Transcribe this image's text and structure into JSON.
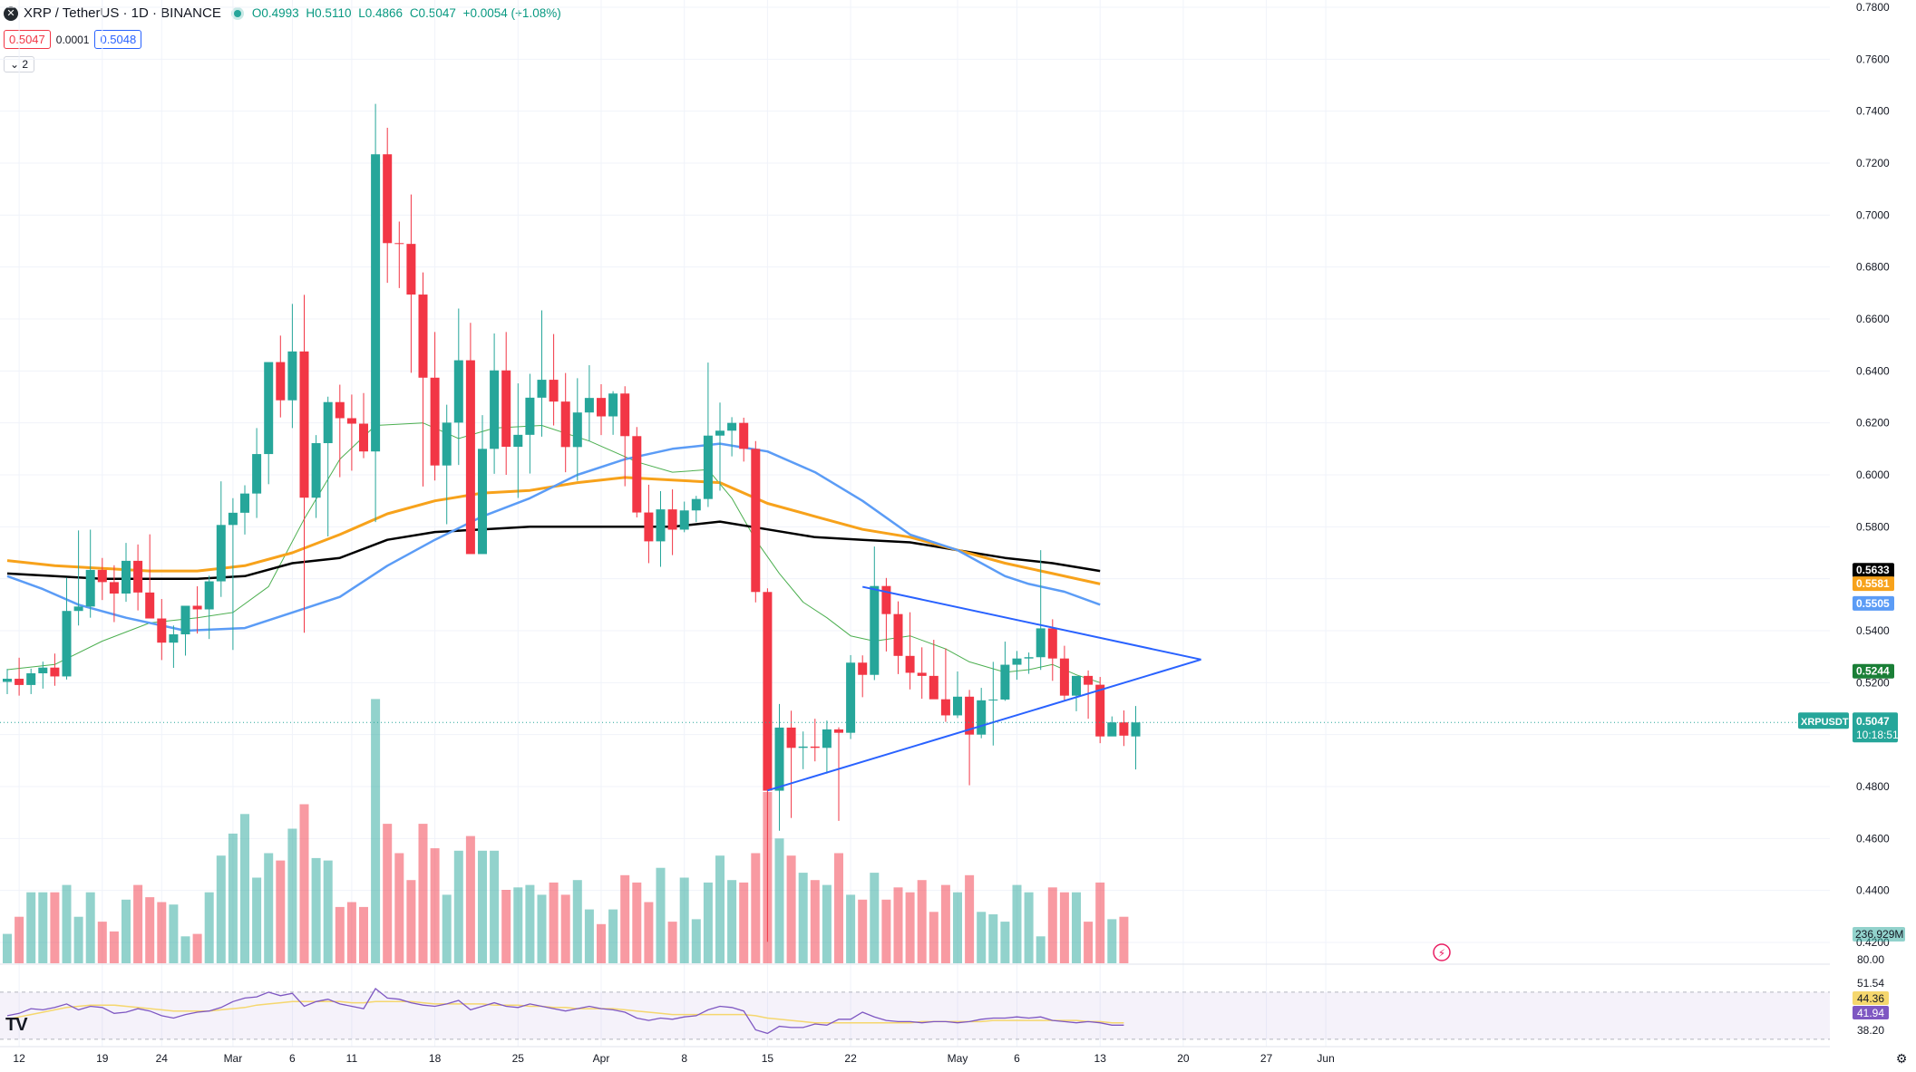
{
  "legend": {
    "logo": "✕",
    "symbol": "XRP / TetherUS · 1D · BINANCE",
    "open": "O0.4993",
    "high": "H0.5110",
    "low": "L0.4866",
    "close": "C0.5047",
    "change": "+0.0054 (+1.08%)",
    "sell_price": "0.5047",
    "spread": "0.0001",
    "buy_price": "0.5048",
    "collapse_label": "⌄ 2"
  },
  "colors": {
    "up": "#26a69a",
    "down": "#f23645",
    "ma_fast": "#4caf50",
    "ma_50": "#5b9cf6",
    "ma_100": "#f7a21b",
    "ma_200": "#000000",
    "trendline": "#2962ff",
    "rsi": "#7e57c2",
    "rsi_ma": "#f5d76e"
  },
  "chart_data": {
    "type": "candlestick",
    "symbol": "XRPUSDT",
    "y_axis_ticks": [
      "0.7800",
      "0.7600",
      "0.7400",
      "0.7200",
      "0.7000",
      "0.6800",
      "0.6600",
      "0.6400",
      "0.6200",
      "0.6000",
      "0.5800",
      "0.5600",
      "0.5400",
      "0.5200",
      "0.5000",
      "0.4800",
      "0.4600",
      "0.4400",
      "0.4200"
    ],
    "ylim": [
      0.409,
      0.781
    ],
    "x_axis_labels": [
      {
        "i": 1,
        "label": "12"
      },
      {
        "i": 8,
        "label": "19"
      },
      {
        "i": 13,
        "label": "24"
      },
      {
        "i": 19,
        "label": "Mar"
      },
      {
        "i": 24,
        "label": "6"
      },
      {
        "i": 29,
        "label": "11"
      },
      {
        "i": 36,
        "label": "18"
      },
      {
        "i": 43,
        "label": "25"
      },
      {
        "i": 50,
        "label": "Apr"
      },
      {
        "i": 57,
        "label": "8"
      },
      {
        "i": 64,
        "label": "15"
      },
      {
        "i": 71,
        "label": "22"
      },
      {
        "i": 80,
        "label": "May"
      },
      {
        "i": 85,
        "label": "6"
      },
      {
        "i": 92,
        "label": "13"
      },
      {
        "i": 99,
        "label": "20"
      },
      {
        "i": 106,
        "label": "27"
      },
      {
        "i": 111,
        "label": "Jun"
      }
    ],
    "candles": [
      [
        0.5203,
        0.5253,
        0.5156,
        0.5215
      ],
      [
        0.5215,
        0.5296,
        0.515,
        0.5191
      ],
      [
        0.5191,
        0.5254,
        0.5156,
        0.5236
      ],
      [
        0.5236,
        0.5281,
        0.5177,
        0.5258
      ],
      [
        0.5258,
        0.5312,
        0.5188,
        0.5224
      ],
      [
        0.5224,
        0.5604,
        0.5212,
        0.5476
      ],
      [
        0.5476,
        0.5786,
        0.542,
        0.5493
      ],
      [
        0.5493,
        0.5789,
        0.545,
        0.5634
      ],
      [
        0.5634,
        0.568,
        0.5518,
        0.5587
      ],
      [
        0.5587,
        0.5652,
        0.5433,
        0.5543
      ],
      [
        0.5543,
        0.5738,
        0.5511,
        0.5669
      ],
      [
        0.5669,
        0.5732,
        0.5478,
        0.5547
      ],
      [
        0.5547,
        0.5771,
        0.5462,
        0.5447
      ],
      [
        0.5447,
        0.5522,
        0.5287,
        0.5354
      ],
      [
        0.5354,
        0.542,
        0.5257,
        0.5386
      ],
      [
        0.5386,
        0.5476,
        0.5304,
        0.5496
      ],
      [
        0.5496,
        0.5571,
        0.5389,
        0.5482
      ],
      [
        0.5482,
        0.5612,
        0.5368,
        0.559
      ],
      [
        0.559,
        0.5975,
        0.553,
        0.5807
      ],
      [
        0.5807,
        0.591,
        0.5326,
        0.5854
      ],
      [
        0.5854,
        0.596,
        0.577,
        0.5928
      ],
      [
        0.5928,
        0.618,
        0.5834,
        0.608
      ],
      [
        0.608,
        0.6406,
        0.5964,
        0.6434
      ],
      [
        0.6434,
        0.6536,
        0.6221,
        0.6287
      ],
      [
        0.6287,
        0.6658,
        0.618,
        0.6475
      ],
      [
        0.6475,
        0.6693,
        0.5392,
        0.5912
      ],
      [
        0.5912,
        0.6153,
        0.5834,
        0.6122
      ],
      [
        0.6122,
        0.6301,
        0.5763,
        0.628
      ],
      [
        0.628,
        0.6347,
        0.5991,
        0.6218
      ],
      [
        0.6218,
        0.6309,
        0.6016,
        0.6197
      ],
      [
        0.6197,
        0.6315,
        0.6064,
        0.609
      ],
      [
        0.609,
        0.7428,
        0.5818,
        0.7234
      ],
      [
        0.7234,
        0.7336,
        0.6739,
        0.6892
      ],
      [
        0.6892,
        0.6975,
        0.6719,
        0.6889
      ],
      [
        0.6889,
        0.7079,
        0.6393,
        0.6694
      ],
      [
        0.6694,
        0.6779,
        0.5955,
        0.6374
      ],
      [
        0.6374,
        0.655,
        0.5978,
        0.6036
      ],
      [
        0.6036,
        0.627,
        0.581,
        0.6201
      ],
      [
        0.6201,
        0.664,
        0.6038,
        0.6441
      ],
      [
        0.6441,
        0.6585,
        0.5697,
        0.5695
      ],
      [
        0.5695,
        0.623,
        0.5697,
        0.61
      ],
      [
        0.61,
        0.6544,
        0.6004,
        0.6402
      ],
      [
        0.6402,
        0.655,
        0.6,
        0.6108
      ],
      [
        0.6108,
        0.6352,
        0.5911,
        0.6154
      ],
      [
        0.6154,
        0.6389,
        0.6005,
        0.6297
      ],
      [
        0.6297,
        0.6633,
        0.6147,
        0.6366
      ],
      [
        0.6366,
        0.6542,
        0.619,
        0.6282
      ],
      [
        0.6282,
        0.6392,
        0.601,
        0.6107
      ],
      [
        0.6107,
        0.6372,
        0.5977,
        0.624
      ],
      [
        0.624,
        0.6422,
        0.6129,
        0.6296
      ],
      [
        0.6296,
        0.6349,
        0.6153,
        0.6225
      ],
      [
        0.6225,
        0.6322,
        0.6154,
        0.6313
      ],
      [
        0.6313,
        0.6341,
        0.5956,
        0.6149
      ],
      [
        0.6149,
        0.6184,
        0.5836,
        0.5855
      ],
      [
        0.5855,
        0.5962,
        0.566,
        0.5744
      ],
      [
        0.5744,
        0.5937,
        0.5646,
        0.5867
      ],
      [
        0.5867,
        0.5944,
        0.5691,
        0.5789
      ],
      [
        0.5789,
        0.5897,
        0.5779,
        0.5863
      ],
      [
        0.5863,
        0.5919,
        0.5818,
        0.5907
      ],
      [
        0.5907,
        0.6432,
        0.5876,
        0.6151
      ],
      [
        0.6151,
        0.6278,
        0.5939,
        0.617
      ],
      [
        0.617,
        0.6222,
        0.6071,
        0.62
      ],
      [
        0.62,
        0.622,
        0.6051,
        0.61
      ],
      [
        0.61,
        0.613,
        0.5509,
        0.5549
      ],
      [
        0.5549,
        0.5563,
        0.4202,
        0.4784
      ],
      [
        0.4784,
        0.5118,
        0.463,
        0.5027
      ],
      [
        0.5027,
        0.5092,
        0.4679,
        0.4949
      ],
      [
        0.4949,
        0.5012,
        0.4867,
        0.4954
      ],
      [
        0.4954,
        0.5061,
        0.4897,
        0.4949
      ],
      [
        0.4949,
        0.5054,
        0.485,
        0.502
      ],
      [
        0.502,
        0.5028,
        0.4668,
        0.5007
      ],
      [
        0.5007,
        0.5306,
        0.4983,
        0.5277
      ],
      [
        0.5277,
        0.5305,
        0.5144,
        0.523
      ],
      [
        0.523,
        0.5724,
        0.521,
        0.5572
      ],
      [
        0.5572,
        0.5603,
        0.532,
        0.5464
      ],
      [
        0.5464,
        0.5513,
        0.5233,
        0.5303
      ],
      [
        0.5303,
        0.5471,
        0.5174,
        0.5238
      ],
      [
        0.5238,
        0.5336,
        0.5138,
        0.5226
      ],
      [
        0.5226,
        0.5365,
        0.5154,
        0.5136
      ],
      [
        0.5136,
        0.5332,
        0.5049,
        0.5074
      ],
      [
        0.5074,
        0.5243,
        0.5064,
        0.5146
      ],
      [
        0.5146,
        0.5172,
        0.4805,
        0.5
      ],
      [
        0.5,
        0.518,
        0.4986,
        0.5132
      ],
      [
        0.5132,
        0.528,
        0.4958,
        0.5135
      ],
      [
        0.5135,
        0.5358,
        0.513,
        0.5269
      ],
      [
        0.5269,
        0.5322,
        0.5211,
        0.5293
      ],
      [
        0.5293,
        0.5316,
        0.5234,
        0.5298
      ],
      [
        0.5298,
        0.571,
        0.5249,
        0.5409
      ],
      [
        0.5409,
        0.5444,
        0.5207,
        0.5293
      ],
      [
        0.5293,
        0.5342,
        0.5128,
        0.515
      ],
      [
        0.515,
        0.5217,
        0.509,
        0.5226
      ],
      [
        0.5226,
        0.5247,
        0.5061,
        0.5192
      ],
      [
        0.5192,
        0.5222,
        0.4967,
        0.4993
      ],
      [
        0.4993,
        0.507,
        0.4994,
        0.5047
      ],
      [
        0.5047,
        0.5093,
        0.4956,
        0.4996
      ],
      [
        0.4993,
        0.511,
        0.4866,
        0.5047
      ]
    ],
    "volume_scale_max": 1.0,
    "volumes": [
      0.12,
      0.19,
      0.29,
      0.29,
      0.29,
      0.32,
      0.19,
      0.29,
      0.17,
      0.13,
      0.26,
      0.32,
      0.27,
      0.25,
      0.24,
      0.11,
      0.12,
      0.29,
      0.44,
      0.53,
      0.61,
      0.35,
      0.45,
      0.42,
      0.55,
      0.65,
      0.43,
      0.42,
      0.23,
      0.25,
      0.23,
      1.08,
      0.57,
      0.45,
      0.34,
      0.57,
      0.47,
      0.28,
      0.46,
      0.52,
      0.46,
      0.46,
      0.3,
      0.31,
      0.32,
      0.28,
      0.33,
      0.28,
      0.34,
      0.22,
      0.16,
      0.22,
      0.36,
      0.33,
      0.25,
      0.39,
      0.17,
      0.35,
      0.18,
      0.33,
      0.44,
      0.34,
      0.33,
      0.45,
      0.7,
      0.51,
      0.44,
      0.37,
      0.34,
      0.32,
      0.45,
      0.28,
      0.26,
      0.37,
      0.26,
      0.31,
      0.29,
      0.34,
      0.21,
      0.32,
      0.29,
      0.36,
      0.21,
      0.2,
      0.17,
      0.32,
      0.29,
      0.11,
      0.31,
      0.29,
      0.29,
      0.17,
      0.33,
      0.18,
      0.19
    ],
    "ma_fast": [
      [
        0,
        0.525
      ],
      [
        4,
        0.527
      ],
      [
        8,
        0.536
      ],
      [
        12,
        0.543
      ],
      [
        16,
        0.545
      ],
      [
        19,
        0.547
      ],
      [
        22,
        0.557
      ],
      [
        25,
        0.583
      ],
      [
        28,
        0.606
      ],
      [
        31,
        0.619
      ],
      [
        35,
        0.62
      ],
      [
        38,
        0.614
      ],
      [
        41,
        0.618
      ],
      [
        45,
        0.619
      ],
      [
        49,
        0.613
      ],
      [
        53,
        0.605
      ],
      [
        56,
        0.601
      ],
      [
        59,
        0.602
      ],
      [
        61,
        0.591
      ],
      [
        63,
        0.575
      ],
      [
        65,
        0.562
      ],
      [
        67,
        0.551
      ],
      [
        69,
        0.545
      ],
      [
        71,
        0.538
      ],
      [
        73,
        0.536
      ],
      [
        76,
        0.538
      ],
      [
        79,
        0.533
      ],
      [
        81,
        0.528
      ],
      [
        84,
        0.524
      ],
      [
        86,
        0.525
      ],
      [
        88,
        0.527
      ],
      [
        90,
        0.523
      ],
      [
        92,
        0.52
      ]
    ],
    "ma_50": [
      [
        0,
        0.561
      ],
      [
        3,
        0.556
      ],
      [
        6,
        0.55
      ],
      [
        10,
        0.545
      ],
      [
        15,
        0.54
      ],
      [
        20,
        0.541
      ],
      [
        24,
        0.547
      ],
      [
        28,
        0.553
      ],
      [
        32,
        0.565
      ],
      [
        36,
        0.575
      ],
      [
        40,
        0.584
      ],
      [
        44,
        0.591
      ],
      [
        48,
        0.6
      ],
      [
        52,
        0.606
      ],
      [
        56,
        0.61
      ],
      [
        60,
        0.612
      ],
      [
        64,
        0.609
      ],
      [
        68,
        0.601
      ],
      [
        72,
        0.59
      ],
      [
        76,
        0.577
      ],
      [
        80,
        0.571
      ],
      [
        84,
        0.561
      ],
      [
        86,
        0.558
      ],
      [
        89,
        0.555
      ],
      [
        92,
        0.55
      ]
    ],
    "ma_100": [
      [
        0,
        0.567
      ],
      [
        4,
        0.565
      ],
      [
        8,
        0.564
      ],
      [
        12,
        0.563
      ],
      [
        16,
        0.563
      ],
      [
        20,
        0.565
      ],
      [
        24,
        0.57
      ],
      [
        28,
        0.577
      ],
      [
        32,
        0.585
      ],
      [
        36,
        0.59
      ],
      [
        40,
        0.593
      ],
      [
        44,
        0.594
      ],
      [
        48,
        0.597
      ],
      [
        52,
        0.599
      ],
      [
        56,
        0.598
      ],
      [
        60,
        0.597
      ],
      [
        64,
        0.589
      ],
      [
        68,
        0.584
      ],
      [
        72,
        0.579
      ],
      [
        76,
        0.576
      ],
      [
        80,
        0.571
      ],
      [
        84,
        0.566
      ],
      [
        88,
        0.562
      ],
      [
        92,
        0.558
      ]
    ],
    "ma_200": [
      [
        0,
        0.562
      ],
      [
        4,
        0.561
      ],
      [
        8,
        0.56
      ],
      [
        12,
        0.56
      ],
      [
        16,
        0.56
      ],
      [
        20,
        0.561
      ],
      [
        24,
        0.566
      ],
      [
        28,
        0.568
      ],
      [
        32,
        0.575
      ],
      [
        36,
        0.578
      ],
      [
        40,
        0.579
      ],
      [
        44,
        0.58
      ],
      [
        48,
        0.58
      ],
      [
        52,
        0.58
      ],
      [
        56,
        0.58
      ],
      [
        60,
        0.582
      ],
      [
        64,
        0.579
      ],
      [
        68,
        0.576
      ],
      [
        72,
        0.575
      ],
      [
        76,
        0.574
      ],
      [
        80,
        0.571
      ],
      [
        84,
        0.568
      ],
      [
        88,
        0.566
      ],
      [
        92,
        0.563
      ]
    ],
    "triangle": {
      "upper": [
        [
          72,
          0.5569
        ],
        [
          100.5,
          0.5289
        ]
      ],
      "lower": [
        [
          64,
          0.4785
        ],
        [
          100.5,
          0.5289
        ]
      ]
    },
    "rsi": {
      "ticks": [
        "80.00",
        "51.54",
        "44.36",
        "41.94",
        "38.20"
      ],
      "ylim": [
        33,
        83
      ],
      "rsi_values": [
        50,
        52,
        56,
        55,
        57,
        60,
        55,
        58,
        57,
        52,
        53,
        56,
        54,
        50,
        48,
        51,
        53,
        54,
        57,
        62,
        65,
        66,
        70,
        67,
        69,
        58,
        62,
        64,
        60,
        58,
        56,
        73,
        65,
        64,
        61,
        59,
        58,
        60,
        63,
        55,
        58,
        61,
        58,
        57,
        60,
        58,
        56,
        54,
        56,
        58,
        56,
        55,
        53,
        48,
        46,
        48,
        47,
        49,
        50,
        55,
        58,
        57,
        54,
        38,
        35,
        41,
        40,
        40,
        43,
        42,
        47,
        47,
        53,
        49,
        46,
        45,
        45,
        44,
        45,
        45,
        44,
        45,
        47,
        48,
        48,
        49,
        48,
        49,
        46,
        45,
        44,
        45,
        44,
        42,
        42
      ],
      "rsi_ma_values": [
        47,
        49,
        51,
        53,
        55,
        57,
        58,
        59,
        59,
        59,
        58,
        57,
        56,
        55,
        54,
        54,
        54,
        54,
        55,
        56,
        57,
        59,
        60,
        61,
        62,
        62,
        62,
        62,
        62,
        61,
        61,
        62,
        62,
        62,
        62,
        61,
        60,
        60,
        60,
        60,
        60,
        59,
        59,
        59,
        58,
        58,
        57,
        57,
        56,
        56,
        56,
        56,
        55,
        54,
        53,
        52,
        51,
        51,
        51,
        51,
        51,
        51,
        51,
        50,
        48,
        47,
        46,
        45,
        44,
        44,
        44,
        44,
        44,
        44,
        44,
        44,
        44,
        45,
        45,
        45,
        45,
        45,
        45,
        46,
        46,
        46,
        46,
        46,
        46,
        46,
        46,
        45,
        45,
        44,
        44
      ]
    },
    "price_labels": [
      {
        "text": "0.5633",
        "value": 0.5633,
        "bg": "#000000",
        "fg": "#ffffff"
      },
      {
        "text": "0.5581",
        "value": 0.5581,
        "bg": "#f7a21b",
        "fg": "#ffffff"
      },
      {
        "text": "0.5505",
        "value": 0.5505,
        "bg": "#5b9cf6",
        "fg": "#ffffff"
      },
      {
        "text": "0.5244",
        "value": 0.5244,
        "bg": "#1a7f37",
        "fg": "#ffffff"
      }
    ],
    "last_price": {
      "symbol_label": "XRPUSDT",
      "price": "0.5047",
      "countdown": "10:18:51",
      "value": 0.5047
    },
    "volume_label": "236.929M"
  }
}
